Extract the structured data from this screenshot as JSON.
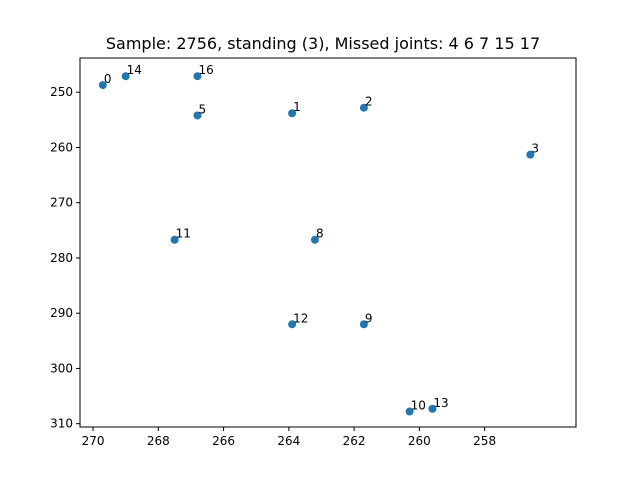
{
  "chart_data": {
    "type": "scatter",
    "title": "Sample: 2756, standing (3), Missed joints: 4  6  7  15  17",
    "xlabel": "",
    "ylabel": "",
    "xlim": [
      270.4,
      255.2
    ],
    "ylim": [
      310.6,
      243.8
    ],
    "x_inverted": true,
    "y_inverted": true,
    "x_ticks": [
      270,
      268,
      266,
      264,
      262,
      260,
      258
    ],
    "y_ticks": [
      250,
      260,
      270,
      280,
      290,
      300,
      310
    ],
    "grid": false,
    "marker_color": "#1f77b4",
    "points": [
      {
        "label": "0",
        "x": 269.7,
        "y": 248.7
      },
      {
        "label": "14",
        "x": 269.0,
        "y": 247.1
      },
      {
        "label": "16",
        "x": 266.8,
        "y": 247.1
      },
      {
        "label": "5",
        "x": 266.8,
        "y": 254.2
      },
      {
        "label": "1",
        "x": 263.9,
        "y": 253.8
      },
      {
        "label": "2",
        "x": 261.7,
        "y": 252.8
      },
      {
        "label": "3",
        "x": 256.6,
        "y": 261.3
      },
      {
        "label": "11",
        "x": 267.5,
        "y": 276.7
      },
      {
        "label": "8",
        "x": 263.2,
        "y": 276.7
      },
      {
        "label": "12",
        "x": 263.9,
        "y": 292.0
      },
      {
        "label": "9",
        "x": 261.7,
        "y": 292.0
      },
      {
        "label": "10",
        "x": 260.3,
        "y": 307.8
      },
      {
        "label": "13",
        "x": 259.6,
        "y": 307.3
      }
    ]
  }
}
